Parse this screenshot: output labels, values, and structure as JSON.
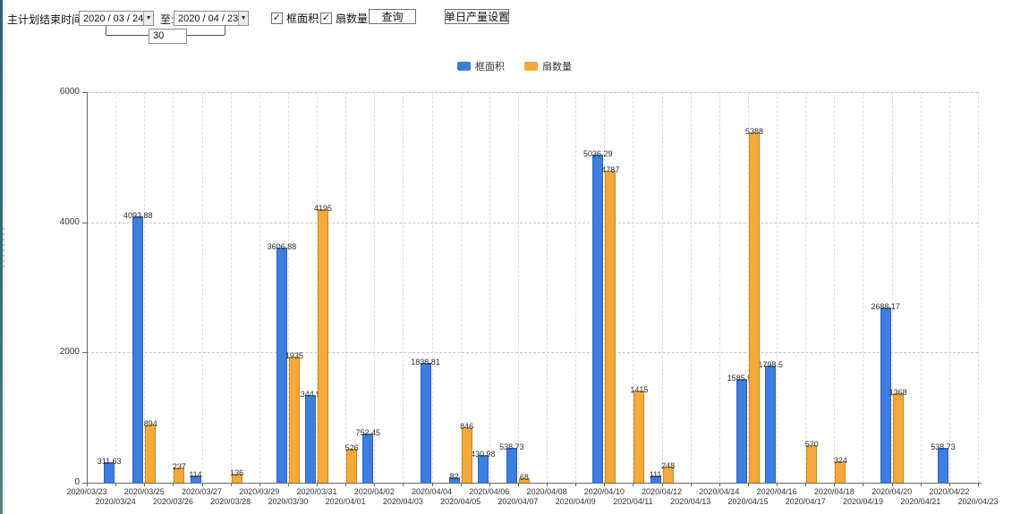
{
  "toolbar": {
    "plan_end_label": "主计划结束时间:",
    "date_from": "2020 / 03 / 24",
    "to_label": "至:",
    "date_to": "2020 / 04 / 23",
    "interval_days": "30",
    "checkbox_frame_area": "框面积",
    "checkbox_sash_count": "扇数量",
    "query_button": "查询",
    "daily_output_button": "单日产量设置"
  },
  "legend": {
    "items": [
      {
        "label": "框面积",
        "color": "#3d7ee0"
      },
      {
        "label": "扇数量",
        "color": "#f5a93b"
      }
    ]
  },
  "chart_data": {
    "type": "bar",
    "title": "",
    "xlabel": "",
    "ylabel": "",
    "ylim": [
      0,
      6000
    ],
    "yticks": [
      0,
      2000,
      4000,
      6000
    ],
    "grid": "dashed",
    "legend_position": "top-center",
    "categories": [
      "2020/03/23",
      "2020/03/24",
      "2020/03/25",
      "2020/03/26",
      "2020/03/27",
      "2020/03/28",
      "2020/03/29",
      "2020/03/30",
      "2020/03/31",
      "2020/04/01",
      "2020/04/02",
      "2020/04/03",
      "2020/04/04",
      "2020/04/05",
      "2020/04/06",
      "2020/04/07",
      "2020/04/08",
      "2020/04/09",
      "2020/04/10",
      "2020/04/11",
      "2020/04/12",
      "2020/04/13",
      "2020/04/14",
      "2020/04/15",
      "2020/04/16",
      "2020/04/17",
      "2020/04/18",
      "2020/04/19",
      "2020/04/20",
      "2020/04/21",
      "2020/04/22",
      "2020/04/23"
    ],
    "series": [
      {
        "name": "框面积",
        "color": "#3d7ee0",
        "border": "#2c62b8",
        "values": [
          0,
          311.63,
          4093.88,
          0,
          114,
          0,
          0,
          3606.88,
          1344.95,
          0,
          752.45,
          0,
          1838.81,
          82,
          430.98,
          538.73,
          0,
          0,
          5036.29,
          0,
          111,
          0,
          0,
          1585.96,
          1798.5,
          0,
          0,
          0,
          2688.17,
          0,
          538.73,
          0
        ]
      },
      {
        "name": "扇数量",
        "color": "#f5a93b",
        "border": "#cd8a1d",
        "values": [
          0,
          0,
          894,
          237,
          0,
          136,
          0,
          1935,
          4195,
          526,
          0,
          0,
          0,
          846,
          0,
          68,
          0,
          0,
          4787,
          1415,
          248,
          0,
          0,
          5388,
          0,
          570,
          324,
          0,
          1368,
          0,
          0,
          0
        ]
      }
    ]
  }
}
